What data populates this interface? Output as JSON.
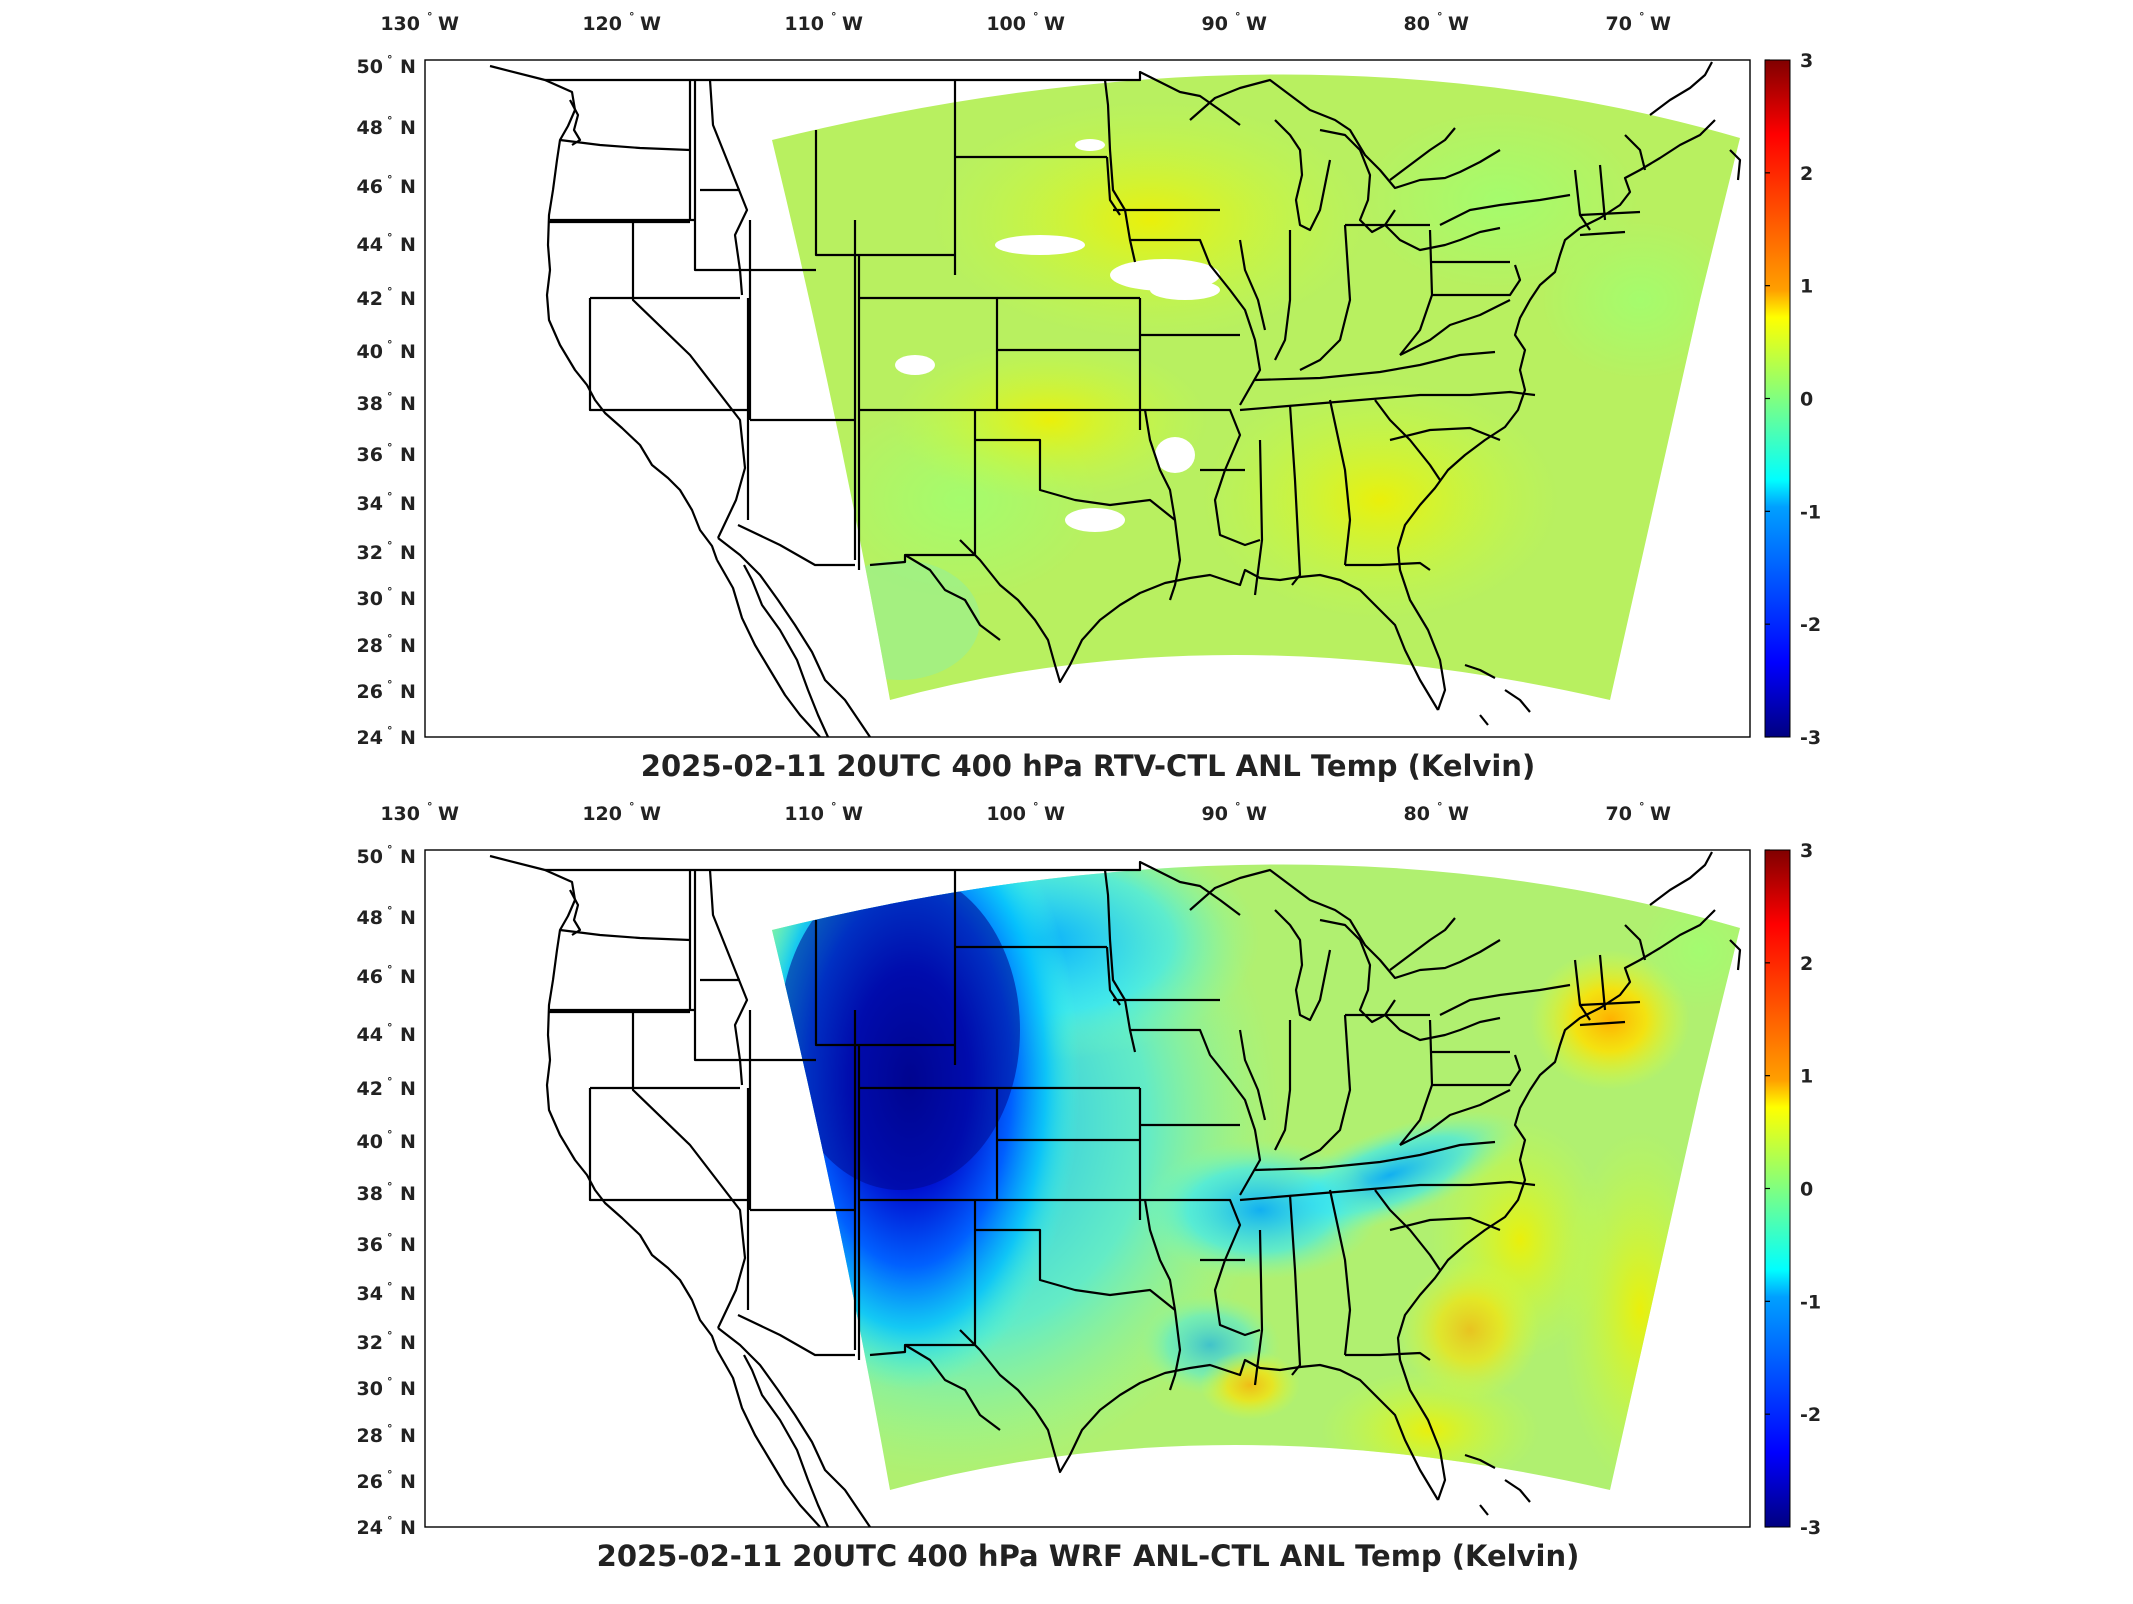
{
  "panels": [
    {
      "title": "2025-02-11 20UTC 400 hPa RTV-CTL ANL Temp (Kelvin)",
      "field": "temperature difference",
      "units": "Kelvin",
      "pattern": "near-zero everywhere, light yellow-green with small white gaps",
      "lon_labels": [
        {
          "value": "130",
          "hemi": "W"
        },
        {
          "value": "120",
          "hemi": "W"
        },
        {
          "value": "110",
          "hemi": "W"
        },
        {
          "value": "100",
          "hemi": "W"
        },
        {
          "value": "90",
          "hemi": "W"
        },
        {
          "value": "80",
          "hemi": "W"
        },
        {
          "value": "70",
          "hemi": "W"
        }
      ],
      "lat_labels": [
        {
          "value": "50",
          "hemi": "N"
        },
        {
          "value": "48",
          "hemi": "N"
        },
        {
          "value": "46",
          "hemi": "N"
        },
        {
          "value": "44",
          "hemi": "N"
        },
        {
          "value": "42",
          "hemi": "N"
        },
        {
          "value": "40",
          "hemi": "N"
        },
        {
          "value": "38",
          "hemi": "N"
        },
        {
          "value": "36",
          "hemi": "N"
        },
        {
          "value": "34",
          "hemi": "N"
        },
        {
          "value": "32",
          "hemi": "N"
        },
        {
          "value": "30",
          "hemi": "N"
        },
        {
          "value": "28",
          "hemi": "N"
        },
        {
          "value": "26",
          "hemi": "N"
        },
        {
          "value": "24",
          "hemi": "N"
        }
      ],
      "colorbar": {
        "min": -3,
        "max": 3,
        "ticks": [
          "3",
          "2",
          "1",
          "0",
          "-1",
          "-2",
          "-3"
        ],
        "colormap": "jet"
      }
    },
    {
      "title": "2025-02-11 20UTC 400 hPa WRF ANL-CTL ANL Temp (Kelvin)",
      "field": "temperature difference",
      "units": "Kelvin",
      "pattern": "strong cold anomaly (about -3 K) over Wyoming/Colorado, warm anomaly (about +1 K) over New England and southeast coast",
      "lon_labels": [
        {
          "value": "130",
          "hemi": "W"
        },
        {
          "value": "120",
          "hemi": "W"
        },
        {
          "value": "110",
          "hemi": "W"
        },
        {
          "value": "100",
          "hemi": "W"
        },
        {
          "value": "90",
          "hemi": "W"
        },
        {
          "value": "80",
          "hemi": "W"
        },
        {
          "value": "70",
          "hemi": "W"
        }
      ],
      "lat_labels": [
        {
          "value": "50",
          "hemi": "N"
        },
        {
          "value": "48",
          "hemi": "N"
        },
        {
          "value": "46",
          "hemi": "N"
        },
        {
          "value": "44",
          "hemi": "N"
        },
        {
          "value": "42",
          "hemi": "N"
        },
        {
          "value": "40",
          "hemi": "N"
        },
        {
          "value": "38",
          "hemi": "N"
        },
        {
          "value": "36",
          "hemi": "N"
        },
        {
          "value": "34",
          "hemi": "N"
        },
        {
          "value": "32",
          "hemi": "N"
        },
        {
          "value": "30",
          "hemi": "N"
        },
        {
          "value": "28",
          "hemi": "N"
        },
        {
          "value": "26",
          "hemi": "N"
        },
        {
          "value": "24",
          "hemi": "N"
        }
      ],
      "colorbar": {
        "min": -3,
        "max": 3,
        "ticks": [
          "3",
          "2",
          "1",
          "0",
          "-1",
          "-2",
          "-3"
        ],
        "colormap": "jet"
      }
    }
  ],
  "colors": {
    "jet": [
      "#000080",
      "#0000ff",
      "#00a0ff",
      "#00ffff",
      "#60ffa0",
      "#c0ff40",
      "#ffff00",
      "#ff9000",
      "#ff0000",
      "#800000"
    ],
    "border": "#000000",
    "background": "#ffffff"
  }
}
